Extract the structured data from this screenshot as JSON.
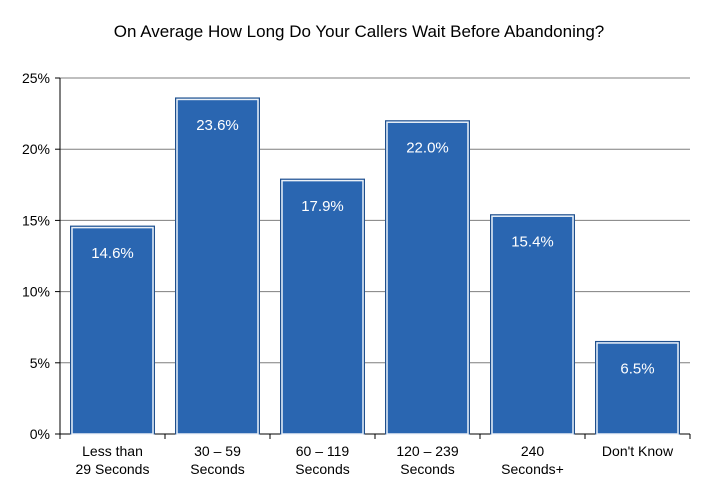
{
  "chart_data": {
    "type": "bar",
    "title": "On Average How Long Do Your Callers Wait Before Abandoning?",
    "xlabel": "",
    "ylabel": "",
    "categories": [
      [
        "Less than",
        "29 Seconds"
      ],
      [
        "30 – 59",
        "Seconds"
      ],
      [
        "60 – 119",
        "Seconds"
      ],
      [
        "120 – 239",
        "Seconds"
      ],
      [
        "240",
        "Seconds+"
      ],
      [
        "Don't Know"
      ]
    ],
    "values": [
      14.6,
      23.6,
      17.9,
      22.0,
      15.4,
      6.5
    ],
    "value_labels": [
      "14.6%",
      "23.6%",
      "17.9%",
      "22.0%",
      "15.4%",
      "6.5%"
    ],
    "ylim": [
      0,
      25
    ],
    "yticks": [
      0,
      5,
      10,
      15,
      20,
      25
    ],
    "ytick_labels": [
      "0%",
      "5%",
      "10%",
      "15%",
      "20%",
      "25%"
    ],
    "grid": true,
    "legend": "none",
    "colors": {
      "bar": "#2a66b1",
      "bar_edge": "#1f4f8c",
      "grid": "#7f7f7f",
      "axis": "#000000"
    }
  }
}
